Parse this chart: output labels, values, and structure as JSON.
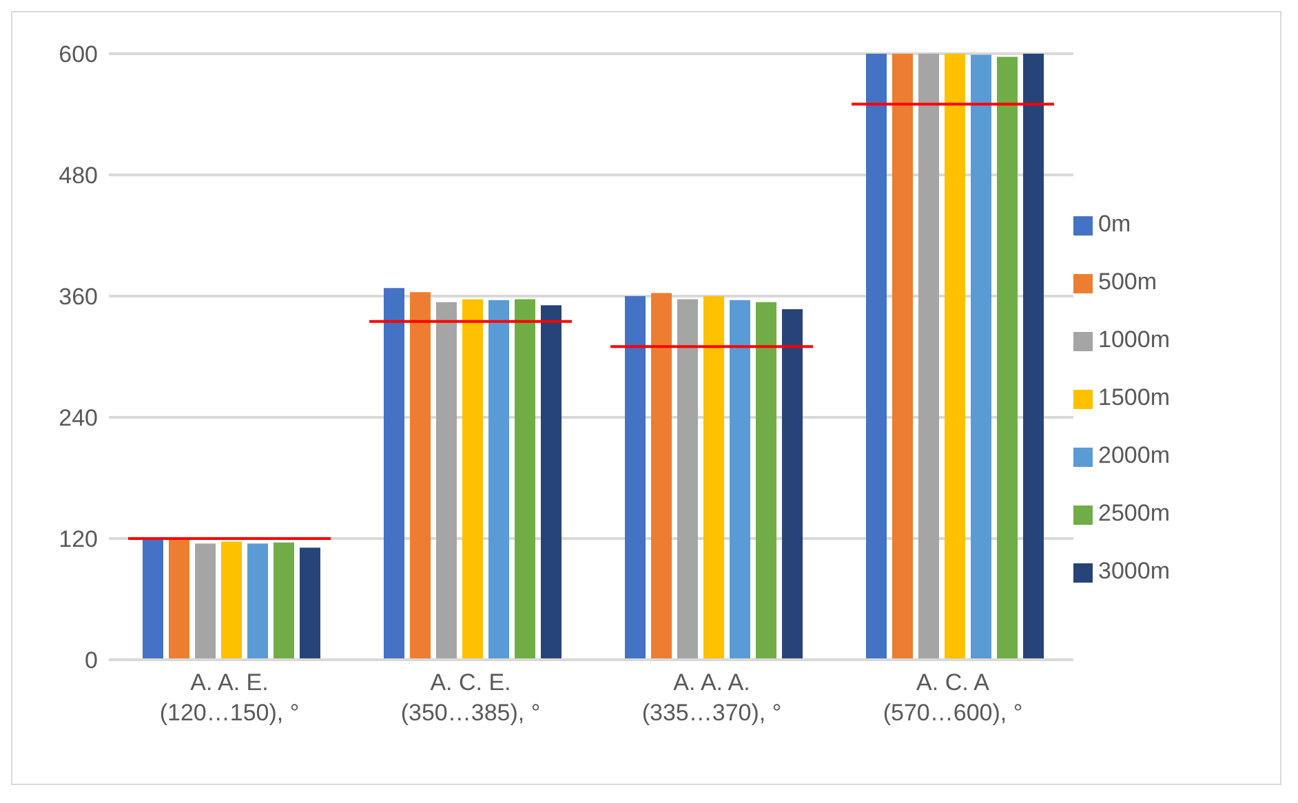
{
  "chart_data": {
    "type": "bar",
    "categories": [
      "A. A. E.\n(120…150), °",
      "A. C. E.\n(350…385), °",
      "A. A. A.\n(335…370), °",
      "A. C. A\n(570…600), °"
    ],
    "series": [
      {
        "name": "0m",
        "color": "#4472c4",
        "values": [
          120,
          368,
          360,
          600
        ]
      },
      {
        "name": "500m",
        "color": "#ed7d31",
        "values": [
          119,
          364,
          363,
          600
        ]
      },
      {
        "name": "1000m",
        "color": "#a5a5a5",
        "values": [
          115,
          354,
          357,
          600
        ]
      },
      {
        "name": "1500m",
        "color": "#ffc000",
        "values": [
          117,
          357,
          360,
          600
        ]
      },
      {
        "name": "2000m",
        "color": "#5b9bd5",
        "values": [
          115,
          356,
          356,
          599
        ]
      },
      {
        "name": "2500m",
        "color": "#70ad47",
        "values": [
          116,
          357,
          354,
          597
        ]
      },
      {
        "name": "3000m",
        "color": "#264478",
        "values": [
          111,
          351,
          347,
          600
        ]
      }
    ],
    "ref_lines": [
      {
        "axis": "y",
        "value": 120,
        "color": "#ff0000"
      },
      {
        "axis": "y",
        "value": 335,
        "color": "#ff0000"
      },
      {
        "axis": "y",
        "value": 310,
        "color": "#ff0000"
      },
      {
        "axis": "y",
        "value": 550,
        "color": "#ff0000"
      }
    ],
    "ylim": [
      0,
      600
    ],
    "yticks": [
      0,
      120,
      240,
      360,
      480,
      600
    ],
    "grid": "y",
    "legend": "right"
  }
}
